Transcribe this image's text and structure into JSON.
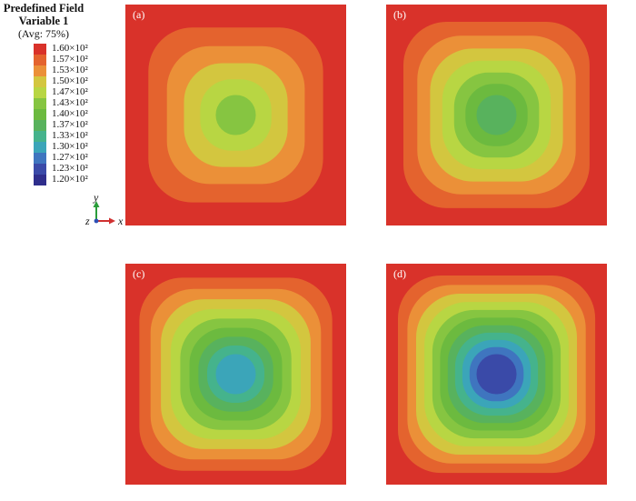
{
  "legend": {
    "title_line1": "Predefined Field",
    "title_line2": "Variable 1",
    "subtitle": "(Avg: 75%)",
    "labels": [
      "1.60×10²",
      "1.57×10²",
      "1.53×10²",
      "1.50×10²",
      "1.47×10²",
      "1.43×10²",
      "1.40×10²",
      "1.37×10²",
      "1.33×10²",
      "1.30×10²",
      "1.27×10²",
      "1.23×10²",
      "1.20×10²"
    ],
    "colors": [
      "#d9322a",
      "#e4632e",
      "#eb9038",
      "#d3c63f",
      "#b8d643",
      "#86c541",
      "#6cba3f",
      "#58b25d",
      "#45b38c",
      "#3ba5b9",
      "#3f75bf",
      "#3a4aa8",
      "#2f2e8c"
    ]
  },
  "axes": {
    "y": "y",
    "z": "z",
    "x": "x"
  },
  "panels": [
    {
      "label": "(a)",
      "bands": 6
    },
    {
      "label": "(b)",
      "bands": 8
    },
    {
      "label": "(c)",
      "bands": 10
    },
    {
      "label": "(d)",
      "bands": 12
    }
  ],
  "band_colors": [
    "#d9322a",
    "#e4632e",
    "#eb9038",
    "#d3c63f",
    "#b8d643",
    "#86c541",
    "#6cba3f",
    "#58b25d",
    "#45b38c",
    "#3ba5b9",
    "#3f75bf",
    "#3a4aa8",
    "#2f2e8c"
  ]
}
